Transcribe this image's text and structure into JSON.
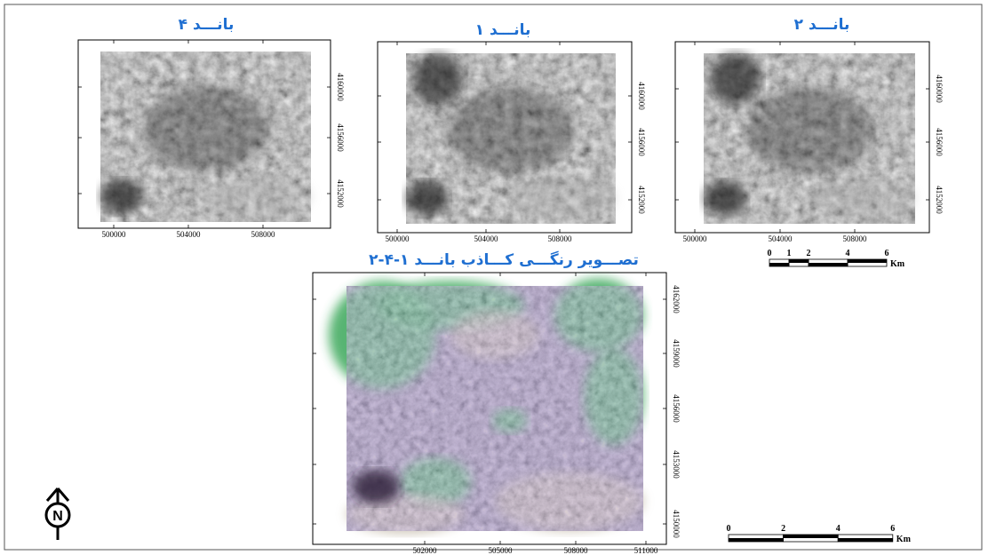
{
  "panels": [
    {
      "title": "بانـــد ۴",
      "x_labels": [
        "500000",
        "504000",
        "508000"
      ],
      "y_labels": [
        "4160000",
        "4156000",
        "4152000"
      ]
    },
    {
      "title": "بانـــد ۱",
      "x_labels": [
        "500000",
        "504000",
        "508000"
      ],
      "y_labels": [
        "4160000",
        "4156000",
        "4152000"
      ]
    },
    {
      "title": "بانـــد ۲",
      "x_labels": [
        "500000",
        "504000",
        "508000"
      ],
      "y_labels": [
        "4160000",
        "4156000",
        "4152000"
      ]
    }
  ],
  "main": {
    "title": "تصـــویر رنگـــی کـــاذب بانـــد ۱-۴-۲",
    "x_labels": [
      "502000",
      "505000",
      "508000",
      "511000"
    ],
    "y_labels": [
      "4162000",
      "4159000",
      "4156000",
      "4153000",
      "4150000"
    ]
  },
  "scale_bars": [
    {
      "labels": [
        "0",
        "1",
        "2",
        "4",
        "6"
      ],
      "unit": "Km"
    },
    {
      "labels": [
        "0",
        "2",
        "4",
        "6"
      ],
      "unit": "Km"
    }
  ],
  "north_arrow": "N"
}
